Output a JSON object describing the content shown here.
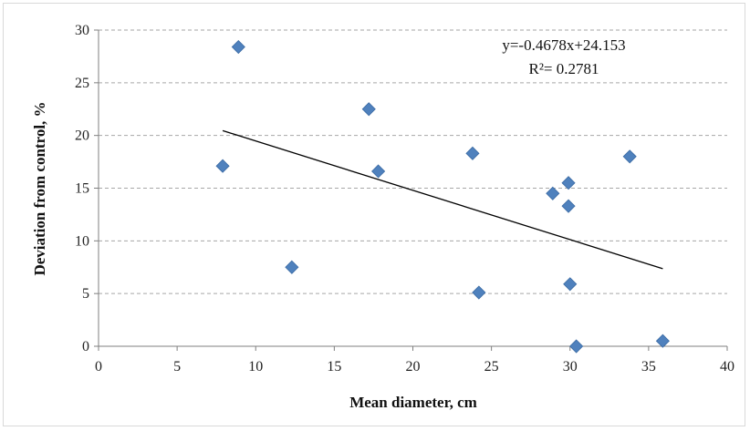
{
  "chart_data": {
    "type": "scatter",
    "title": "",
    "xlabel": "Mean diameter, cm",
    "ylabel": "Deviation from control, %",
    "xlim": [
      0,
      40
    ],
    "ylim": [
      0,
      30
    ],
    "x_ticks": [
      "0",
      "5",
      "10",
      "15",
      "20",
      "25",
      "30",
      "35",
      "40"
    ],
    "y_ticks": [
      "0",
      "5",
      "10",
      "15",
      "20",
      "25",
      "30"
    ],
    "grid": {
      "horizontal": true,
      "style": "dashed"
    },
    "legend": "none",
    "marker": {
      "shape": "diamond",
      "color": "#4f81bd"
    },
    "points": [
      {
        "x": 7.9,
        "y": 17.1
      },
      {
        "x": 8.9,
        "y": 28.4
      },
      {
        "x": 12.3,
        "y": 7.5
      },
      {
        "x": 17.2,
        "y": 22.5
      },
      {
        "x": 17.8,
        "y": 16.6
      },
      {
        "x": 23.8,
        "y": 18.3
      },
      {
        "x": 24.2,
        "y": 5.1
      },
      {
        "x": 28.9,
        "y": 14.5
      },
      {
        "x": 29.9,
        "y": 15.5
      },
      {
        "x": 29.9,
        "y": 13.3
      },
      {
        "x": 30.0,
        "y": 5.9
      },
      {
        "x": 30.4,
        "y": 0.0
      },
      {
        "x": 33.8,
        "y": 18.0
      },
      {
        "x": 35.9,
        "y": 0.5
      }
    ],
    "trendline": {
      "slope": -0.4678,
      "intercept": 24.153,
      "x_range": [
        7.9,
        35.9
      ],
      "color": "#000000"
    },
    "annotations": [
      "y=-0.4678x+24.153",
      "R²= 0.2781"
    ]
  }
}
